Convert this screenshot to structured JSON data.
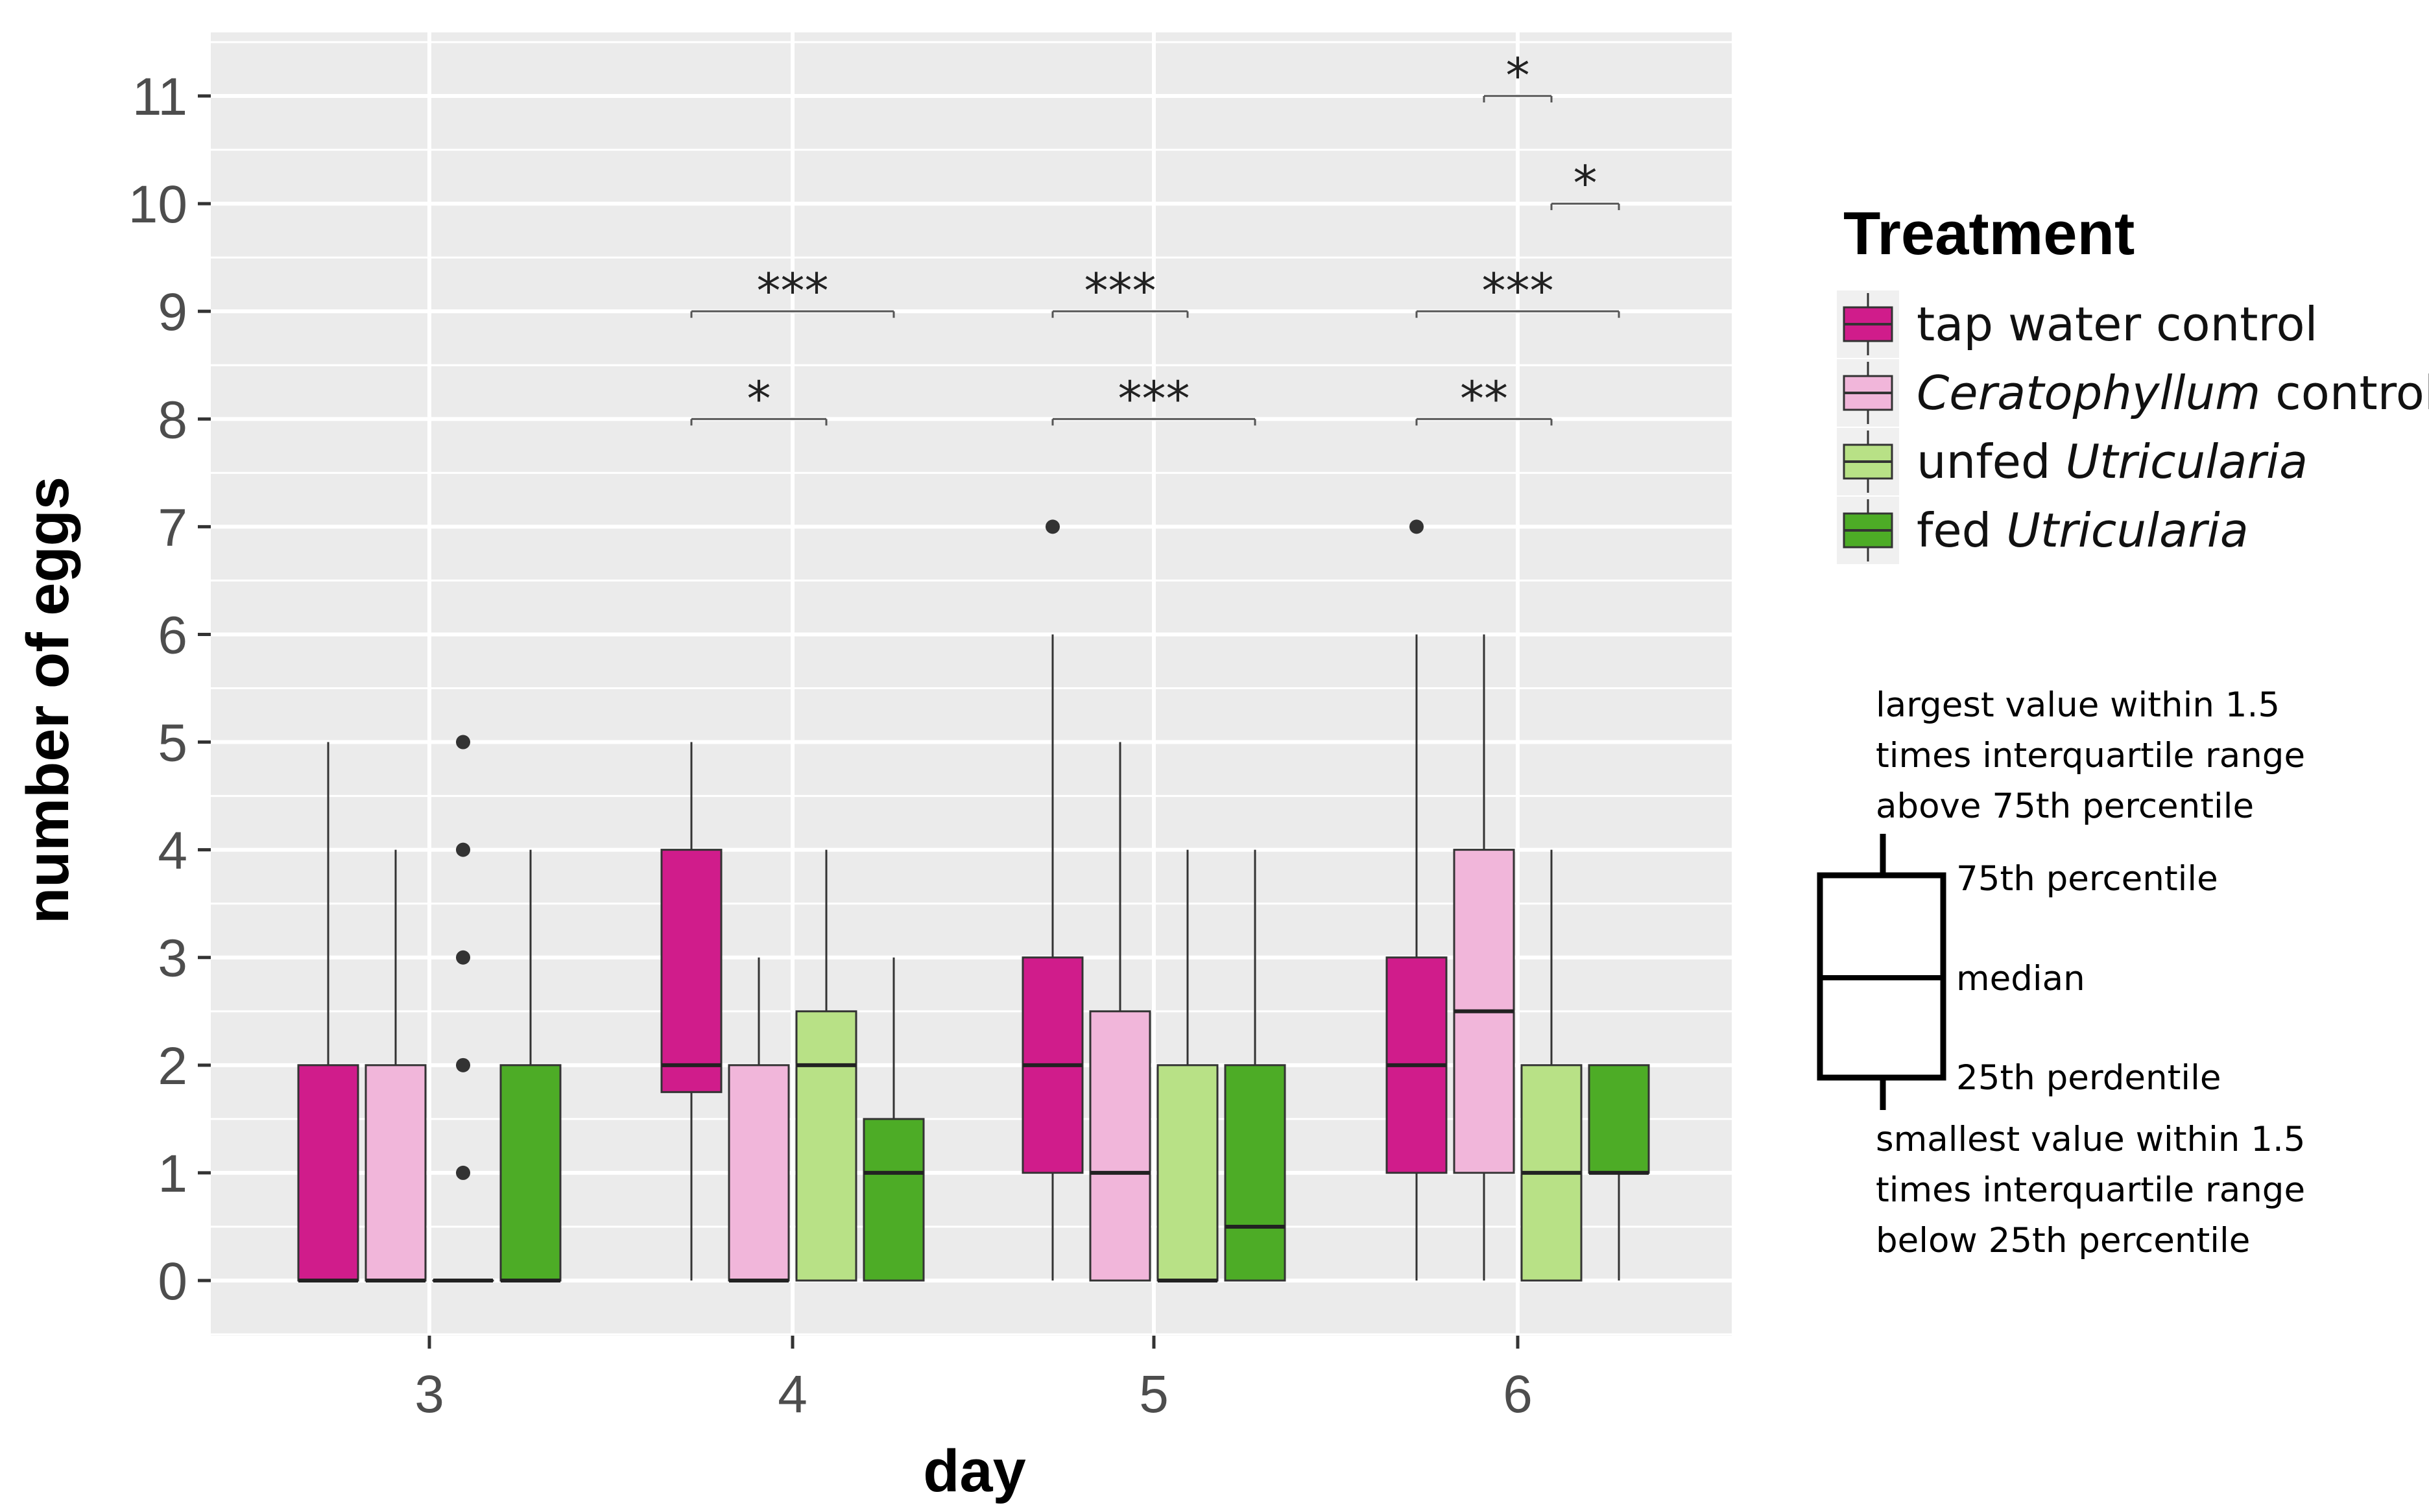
{
  "chart_data": {
    "type": "boxplot",
    "xlabel": "day",
    "ylabel": "number of eggs",
    "ylim": [
      -0.5,
      11.5
    ],
    "yticks": [
      "0",
      "1",
      "2",
      "3",
      "4",
      "5",
      "6",
      "7",
      "8",
      "9",
      "10",
      "11"
    ],
    "categories": [
      "3",
      "4",
      "5",
      "6"
    ],
    "legend": {
      "title": "Treatment",
      "position": "right",
      "entries": [
        {
          "parts": [
            {
              "text": "tap water control",
              "italic": false
            }
          ]
        },
        {
          "parts": [
            {
              "text": "Ceratophyllum",
              "italic": true
            },
            {
              "text": " control",
              "italic": false
            }
          ]
        },
        {
          "parts": [
            {
              "text": "unfed ",
              "italic": false
            },
            {
              "text": "Utricularia",
              "italic": true
            }
          ]
        },
        {
          "parts": [
            {
              "text": "fed ",
              "italic": false
            },
            {
              "text": "Utricularia",
              "italic": true
            }
          ]
        }
      ]
    },
    "series": [
      {
        "name": "tap water control",
        "color": "#d01c8b",
        "boxes": [
          {
            "day": "3",
            "q1": 0,
            "median": 0,
            "q3": 2,
            "whisker_low": 0,
            "whisker_high": 5,
            "outliers": []
          },
          {
            "day": "4",
            "q1": 1.75,
            "median": 2,
            "q3": 4,
            "whisker_low": 0,
            "whisker_high": 5,
            "outliers": []
          },
          {
            "day": "5",
            "q1": 1,
            "median": 2,
            "q3": 3,
            "whisker_low": 0,
            "whisker_high": 6,
            "outliers": [
              7
            ]
          },
          {
            "day": "6",
            "q1": 1,
            "median": 2,
            "q3": 3,
            "whisker_low": 0,
            "whisker_high": 6,
            "outliers": [
              7
            ]
          }
        ]
      },
      {
        "name": "Ceratophyllum control",
        "color": "#f1b6da",
        "boxes": [
          {
            "day": "3",
            "q1": 0,
            "median": 0,
            "q3": 2,
            "whisker_low": 0,
            "whisker_high": 4,
            "outliers": []
          },
          {
            "day": "4",
            "q1": 0,
            "median": 0,
            "q3": 2,
            "whisker_low": 0,
            "whisker_high": 3,
            "outliers": []
          },
          {
            "day": "5",
            "q1": 0,
            "median": 1,
            "q3": 2.5,
            "whisker_low": 0,
            "whisker_high": 5,
            "outliers": []
          },
          {
            "day": "6",
            "q1": 1,
            "median": 2.5,
            "q3": 4,
            "whisker_low": 0,
            "whisker_high": 6,
            "outliers": []
          }
        ]
      },
      {
        "name": "unfed Utricularia",
        "color": "#b8e186",
        "boxes": [
          {
            "day": "3",
            "q1": 0,
            "median": 0,
            "q3": 0,
            "whisker_low": 0,
            "whisker_high": 0,
            "outliers": [
              1,
              2,
              3,
              4,
              5
            ]
          },
          {
            "day": "4",
            "q1": 0,
            "median": 2,
            "q3": 2.5,
            "whisker_low": 0,
            "whisker_high": 4,
            "outliers": []
          },
          {
            "day": "5",
            "q1": 0,
            "median": 0,
            "q3": 2,
            "whisker_low": 0,
            "whisker_high": 4,
            "outliers": []
          },
          {
            "day": "6",
            "q1": 0,
            "median": 1,
            "q3": 2,
            "whisker_low": 0,
            "whisker_high": 4,
            "outliers": []
          }
        ]
      },
      {
        "name": "fed Utricularia",
        "color": "#4dac26",
        "boxes": [
          {
            "day": "3",
            "q1": 0,
            "median": 0,
            "q3": 2,
            "whisker_low": 0,
            "whisker_high": 4,
            "outliers": []
          },
          {
            "day": "4",
            "q1": 0,
            "median": 1,
            "q3": 1.5,
            "whisker_low": 0,
            "whisker_high": 3,
            "outliers": []
          },
          {
            "day": "5",
            "q1": 0,
            "median": 0.5,
            "q3": 2,
            "whisker_low": 0,
            "whisker_high": 4,
            "outliers": []
          },
          {
            "day": "6",
            "q1": 1,
            "median": 1,
            "q3": 2,
            "whisker_low": 0,
            "whisker_high": 2,
            "outliers": []
          }
        ]
      }
    ],
    "significance": [
      {
        "day": "4",
        "from_group": 0,
        "to_group": 3,
        "y": 9,
        "label": "***"
      },
      {
        "day": "4",
        "from_group": 0,
        "to_group": 2,
        "y": 8,
        "label": "*"
      },
      {
        "day": "5",
        "from_group": 0,
        "to_group": 2,
        "y": 9,
        "label": "***"
      },
      {
        "day": "5",
        "from_group": 0,
        "to_group": 3,
        "y": 8,
        "label": "***"
      },
      {
        "day": "6",
        "from_group": 0,
        "to_group": 3,
        "y": 9,
        "label": "***"
      },
      {
        "day": "6",
        "from_group": 0,
        "to_group": 2,
        "y": 8,
        "label": "**"
      },
      {
        "day": "6",
        "from_group": 2,
        "to_group": 3,
        "y": 10,
        "label": "*"
      },
      {
        "day": "6",
        "from_group": 1,
        "to_group": 2,
        "y": 11,
        "label": "*"
      }
    ],
    "boxplot_key": {
      "top_lines": [
        "largest value within 1.5",
        "times interquartile range",
        "above 75th percentile"
      ],
      "q3_label": "75th percentile",
      "median_label": "median",
      "q1_label": "25th perdentile",
      "bottom_lines": [
        "smallest value within 1.5",
        "times interquartile range",
        "below 25th percentile"
      ]
    }
  }
}
